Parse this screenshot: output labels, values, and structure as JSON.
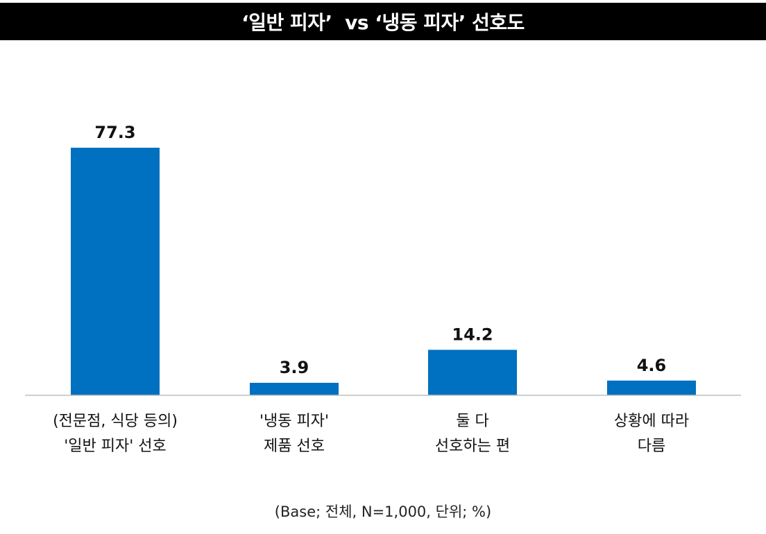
{
  "title": "‘일반 피자’  vs ‘냉동 피자’ 선호도",
  "footnote": "(Base; 전체, N=1,000, 단위; %)",
  "colors": {
    "bar": "#0070C0",
    "title_bg": "#000000",
    "title_text": "#FFFFFF",
    "axis": "#BFBFBF"
  },
  "chart_data": {
    "type": "bar",
    "categories": [
      [
        "(전문점, 식당 등의)",
        "'일반 피자' 선호"
      ],
      [
        "'냉동 피자'",
        "제품 선호"
      ],
      [
        "둘 다",
        "선호하는 편"
      ],
      [
        "상황에 따라",
        "다름"
      ]
    ],
    "values": [
      77.3,
      3.9,
      14.2,
      4.6
    ],
    "value_labels": [
      "77.3",
      "3.9",
      "14.2",
      "4.6"
    ],
    "unit": "%",
    "grid": false,
    "legend": "none"
  }
}
